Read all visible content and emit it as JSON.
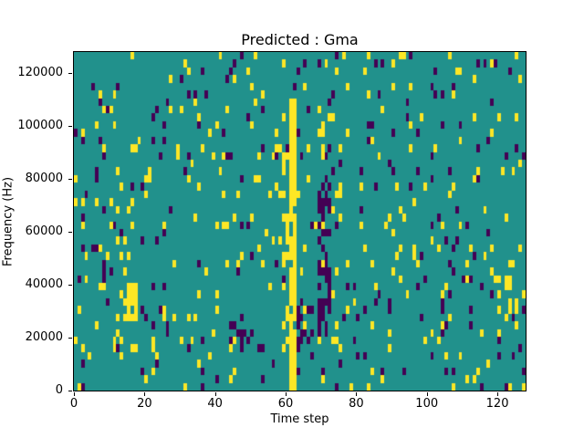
{
  "chart_data": {
    "type": "heatmap",
    "title": "Predicted : Gma",
    "xlabel": "Time step",
    "ylabel": "Frequency (Hz)",
    "x_domain": [
      0,
      128
    ],
    "y_domain": [
      0,
      128000
    ],
    "x_ticks": [
      0,
      20,
      40,
      60,
      80,
      100,
      120
    ],
    "y_ticks": [
      0,
      20000,
      40000,
      60000,
      80000,
      100000,
      120000
    ],
    "grid": false,
    "legend": null,
    "colormap": "viridis (3-level: low / mid / high)",
    "colors": {
      "low": "#440154",
      "mid": "#21918c",
      "high": "#fde725"
    },
    "grid_size": {
      "cols": 128,
      "rows": 44
    },
    "background_value": "mid",
    "scatter": {
      "seed": 20240613,
      "p_low": 0.035,
      "p_high": 0.05
    },
    "features": [
      {
        "desc": "dense yellow vertical streak near time 61-62 spanning 0-110000 Hz",
        "x0": 61,
        "x1": 62,
        "row0": 0,
        "row1": 37,
        "value": "high",
        "density": 0.9
      },
      {
        "desc": "sparser yellow edge of main streak",
        "x0": 59,
        "x1": 60,
        "row0": 4,
        "row1": 30,
        "value": "high",
        "density": 0.3
      },
      {
        "desc": "dark purple vertical streak near time 70 spanning 20000-78000 Hz",
        "x0": 69,
        "x1": 72,
        "row0": 7,
        "row1": 26,
        "value": "low",
        "density": 0.5
      },
      {
        "desc": "purple patch low frequency right of yellow streak",
        "x0": 63,
        "x1": 67,
        "row0": 6,
        "row1": 10,
        "value": "low",
        "density": 0.45
      },
      {
        "desc": "yellow cluster near time 15, 28000-40000 Hz",
        "x0": 14,
        "x1": 17,
        "row0": 9,
        "row1": 13,
        "value": "high",
        "density": 0.5
      },
      {
        "desc": "purple cluster near time 45-50, 18000-28000 Hz",
        "x0": 44,
        "x1": 50,
        "row0": 6,
        "row1": 9,
        "value": "low",
        "density": 0.35
      },
      {
        "desc": "yellow cluster near time 118-125, 24000-42000 Hz",
        "x0": 118,
        "x1": 125,
        "row0": 8,
        "row1": 14,
        "value": "high",
        "density": 0.3
      }
    ]
  }
}
